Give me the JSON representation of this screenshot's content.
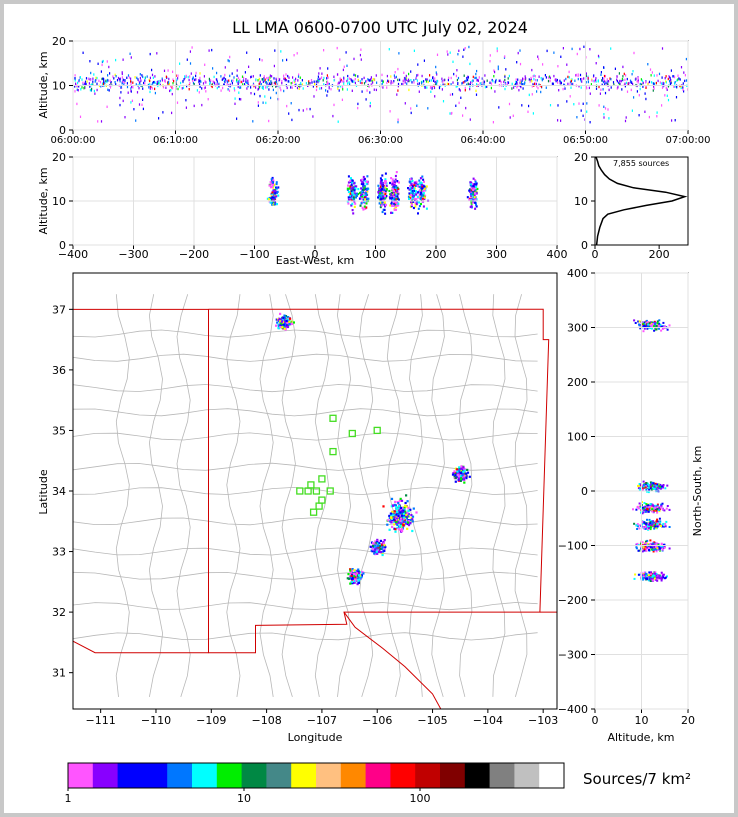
{
  "title": "LL LMA 0600-0700 UTC July 02, 2024",
  "colors": {
    "frame": "#c8c8c8",
    "state_border": "#d00000",
    "county_border": "#b8b8b8",
    "lma_station": "#44dd22",
    "histogram": "#000000"
  },
  "colorbar": {
    "label": "Sources/7 km²",
    "tick_labels": [
      "1",
      "10",
      "100"
    ],
    "colors": [
      "#ff55ff",
      "#8800ff",
      "#0000ff",
      "#0000ff",
      "#0077ff",
      "#00ffff",
      "#00ee00",
      "#008844",
      "#448888",
      "#ffff00",
      "#ffc080",
      "#ff8800",
      "#ff0088",
      "#ff0000",
      "#c00000",
      "#800000",
      "#000000",
      "#808080",
      "#c0c0c0",
      "#ffffff"
    ]
  },
  "chart_data": [
    {
      "type": "scatter",
      "panel": "altitude-time",
      "ylabel": "Altitude, km",
      "xlabel": "",
      "x_tick_labels": [
        "06:00:00",
        "06:10:00",
        "06:20:00",
        "06:30:00",
        "06:40:00",
        "06:50:00",
        "07:00:00"
      ],
      "xlim": [
        "06:00:00",
        "07:00:00"
      ],
      "y_ticks": [
        0,
        10,
        20
      ],
      "ylim": [
        0,
        20
      ],
      "grid": true
    },
    {
      "type": "scatter",
      "panel": "altitude-eastwest",
      "xlabel": "East-West, km",
      "ylabel": "Altitude, km",
      "x_ticks": [
        -400,
        -300,
        -200,
        -100,
        0,
        100,
        200,
        300,
        400
      ],
      "xlim": [
        -400,
        400
      ],
      "y_ticks": [
        0,
        10,
        20
      ],
      "ylim": [
        0,
        20
      ],
      "grid": true,
      "clusters_x_km": [
        -70,
        60,
        80,
        110,
        130,
        160,
        175,
        260
      ]
    },
    {
      "type": "line",
      "panel": "altitude-histogram",
      "annotation": "7,855 sources",
      "x_ticks": [
        0,
        200
      ],
      "xlim": [
        0,
        290
      ],
      "y_ticks": [
        0,
        10,
        20
      ],
      "ylim": [
        0,
        20
      ],
      "series": [
        {
          "altitude_km": [
            0,
            2,
            4,
            6,
            7,
            8,
            9,
            10,
            11,
            12,
            13,
            14,
            15,
            16,
            17,
            18,
            19,
            20
          ],
          "count": [
            5,
            8,
            15,
            25,
            40,
            90,
            160,
            240,
            280,
            220,
            120,
            70,
            45,
            30,
            20,
            12,
            8,
            3
          ]
        }
      ]
    },
    {
      "type": "scatter",
      "panel": "plan-view-map",
      "xlabel": "Longitude",
      "ylabel": "Latitude",
      "x_ticks": [
        -111,
        -110,
        -109,
        -108,
        -107,
        -106,
        -105,
        -104,
        -103
      ],
      "xlim": [
        -111.5,
        -102.75
      ],
      "y_ticks": [
        31,
        32,
        33,
        34,
        35,
        36,
        37
      ],
      "ylim": [
        30.4,
        37.6
      ],
      "source_clusters": [
        {
          "lon": -107.7,
          "lat": 36.8
        },
        {
          "lon": -105.6,
          "lat": 33.6
        },
        {
          "lon": -106.0,
          "lat": 33.1
        },
        {
          "lon": -106.4,
          "lat": 32.6
        },
        {
          "lon": -104.5,
          "lat": 34.3
        }
      ],
      "stations": [
        {
          "lon": -106.8,
          "lat": 35.2
        },
        {
          "lon": -106.45,
          "lat": 34.95
        },
        {
          "lon": -106.0,
          "lat": 35.0
        },
        {
          "lon": -106.8,
          "lat": 34.65
        },
        {
          "lon": -107.0,
          "lat": 34.2
        },
        {
          "lon": -107.2,
          "lat": 34.1
        },
        {
          "lon": -107.4,
          "lat": 34.0
        },
        {
          "lon": -107.25,
          "lat": 34.0
        },
        {
          "lon": -107.1,
          "lat": 34.0
        },
        {
          "lon": -106.85,
          "lat": 34.0
        },
        {
          "lon": -107.0,
          "lat": 33.85
        },
        {
          "lon": -107.05,
          "lat": 33.75
        },
        {
          "lon": -107.15,
          "lat": 33.65
        }
      ]
    },
    {
      "type": "scatter",
      "panel": "northsouth-altitude",
      "xlabel": "Altitude, km",
      "ylabel": "North-South, km",
      "x_ticks": [
        0,
        10,
        20
      ],
      "xlim": [
        0,
        20
      ],
      "y_ticks": [
        -400,
        -300,
        -200,
        -100,
        0,
        100,
        200,
        300,
        400
      ],
      "ylim": [
        -400,
        400
      ],
      "grid": true,
      "clusters_y_km": [
        305,
        10,
        -30,
        -60,
        -100,
        -155
      ]
    }
  ]
}
